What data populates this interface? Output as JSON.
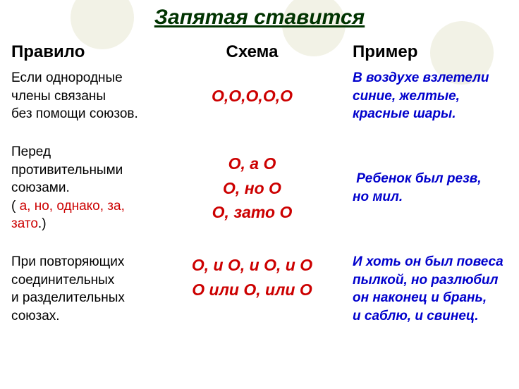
{
  "title": "Запятая ставится",
  "colors": {
    "title": "#003300",
    "scheme": "#cc0000",
    "example": "#0000cc",
    "circle": "#f2f2e6",
    "text": "#000000",
    "conj": "#cc0000"
  },
  "headers": {
    "rule": "Правило",
    "scheme": "Схема",
    "example": "Пример"
  },
  "rows": [
    {
      "rule_lines": [
        "Если однородные",
        "члены связаны",
        "без помощи союзов."
      ],
      "scheme_lines": [
        "О,О,О,О,О"
      ],
      "example_lines": [
        "В воздухе взлетели",
        "синие, желтые,",
        "красные шары."
      ]
    },
    {
      "rule_prefix": [
        "Перед",
        "противительными",
        "союзами."
      ],
      "rule_paren_open": "( ",
      "rule_conj": "а, но, однако, за, зато",
      "rule_paren_close": ".)",
      "scheme_lines": [
        "О, а О",
        "О, но О",
        "О, зато О"
      ],
      "example_lines": [
        " Ребенок был резв,",
        "но мил."
      ]
    },
    {
      "rule_lines": [
        "При повторяющих",
        "соединительных",
        "и разделительных",
        "союзах."
      ],
      "scheme_lines": [
        "О, и О, и О, и О",
        "О или О, или О"
      ],
      "example_lines": [
        "И хоть он был повеса",
        "пылкой, но разлюбил",
        "он наконец и брань,",
        "и саблю, и свинец."
      ]
    }
  ]
}
